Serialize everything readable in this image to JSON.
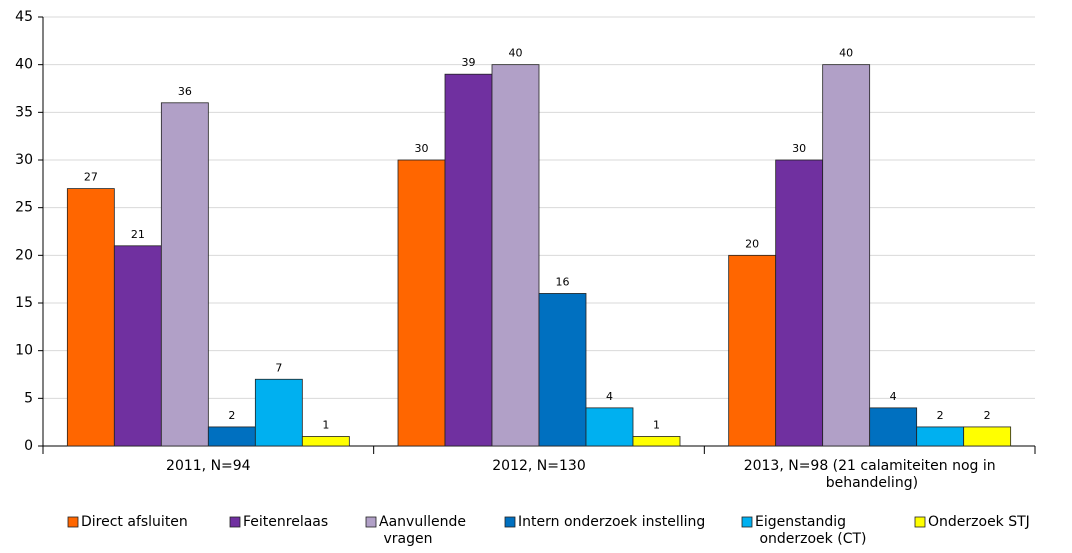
{
  "chart_data": {
    "type": "bar",
    "categories": [
      "2011, N=94",
      "2012, N=130",
      "2013, N=98 (21 calamiteiten nog in behandeling)"
    ],
    "series": [
      {
        "name": "Direct afsluiten",
        "color": "#ff6600",
        "values": [
          27,
          30,
          20
        ]
      },
      {
        "name": "Feitenrelaas",
        "color": "#7030a0",
        "values": [
          21,
          39,
          30
        ]
      },
      {
        "name": "Aanvullende vragen",
        "color": "#b1a0c7",
        "values": [
          36,
          40,
          40
        ]
      },
      {
        "name": "Intern onderzoek instelling",
        "color": "#0070c0",
        "values": [
          2,
          16,
          4
        ]
      },
      {
        "name": "Eigenstandig onderzoek (CT)",
        "color": "#00b0f0",
        "values": [
          7,
          4,
          2
        ]
      },
      {
        "name": "Onderzoek STJ",
        "color": "#ffff00",
        "values": [
          1,
          1,
          2
        ]
      }
    ],
    "ylim": [
      0,
      45
    ],
    "yticks": [
      0,
      5,
      10,
      15,
      20,
      25,
      30,
      35,
      40,
      45
    ],
    "grid": true,
    "legend": "bottom"
  }
}
